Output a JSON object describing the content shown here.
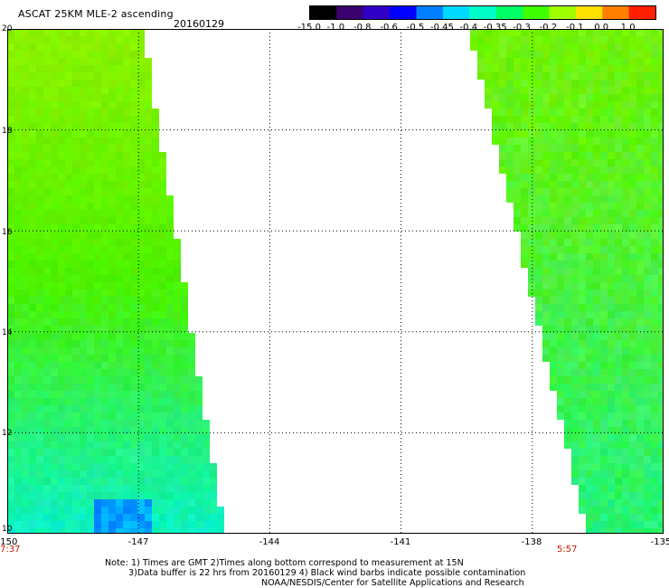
{
  "header": {
    "title": "ASCAT 25KM MLE-2 ascending",
    "date": "20160129"
  },
  "colorbar": {
    "labels": [
      "-15.0",
      "-1.0",
      "-0.8",
      "-0.6",
      "-0.5",
      "-0.45",
      "-0.4",
      "-0.35",
      "-0.3",
      "-0.2",
      "-0.1",
      "0.0",
      "1.0"
    ],
    "colors": [
      "#000000",
      "#3a0070",
      "#3000c8",
      "#0000ff",
      "#0080ff",
      "#00d8ff",
      "#00ffc8",
      "#00ff64",
      "#40ff00",
      "#a0ff00",
      "#ffe000",
      "#ff8000",
      "#ff2000"
    ]
  },
  "map": {
    "lat_labels": [
      "20",
      "18",
      "16",
      "14",
      "12",
      "10"
    ],
    "lon_labels": [
      "-150",
      "-147",
      "-144",
      "-141",
      "-138",
      "-135"
    ],
    "lat_range": [
      10,
      20
    ],
    "lon_range": [
      -150,
      -135
    ],
    "grid": true,
    "swath_left_color": "#7cf000",
    "swath_right_color": "#8cf000"
  },
  "times": {
    "left": "7:37",
    "right": "5:57"
  },
  "notes": [
    "Note: 1) Times are GMT 2)Times along bottom correspond to measurement at 15N",
    "3)Data buffer is 22 hrs from 20160129 4) Black wind barbs indicate possible contamination",
    "NOAA/NESDIS/Center for Satellite Applications and Research"
  ]
}
